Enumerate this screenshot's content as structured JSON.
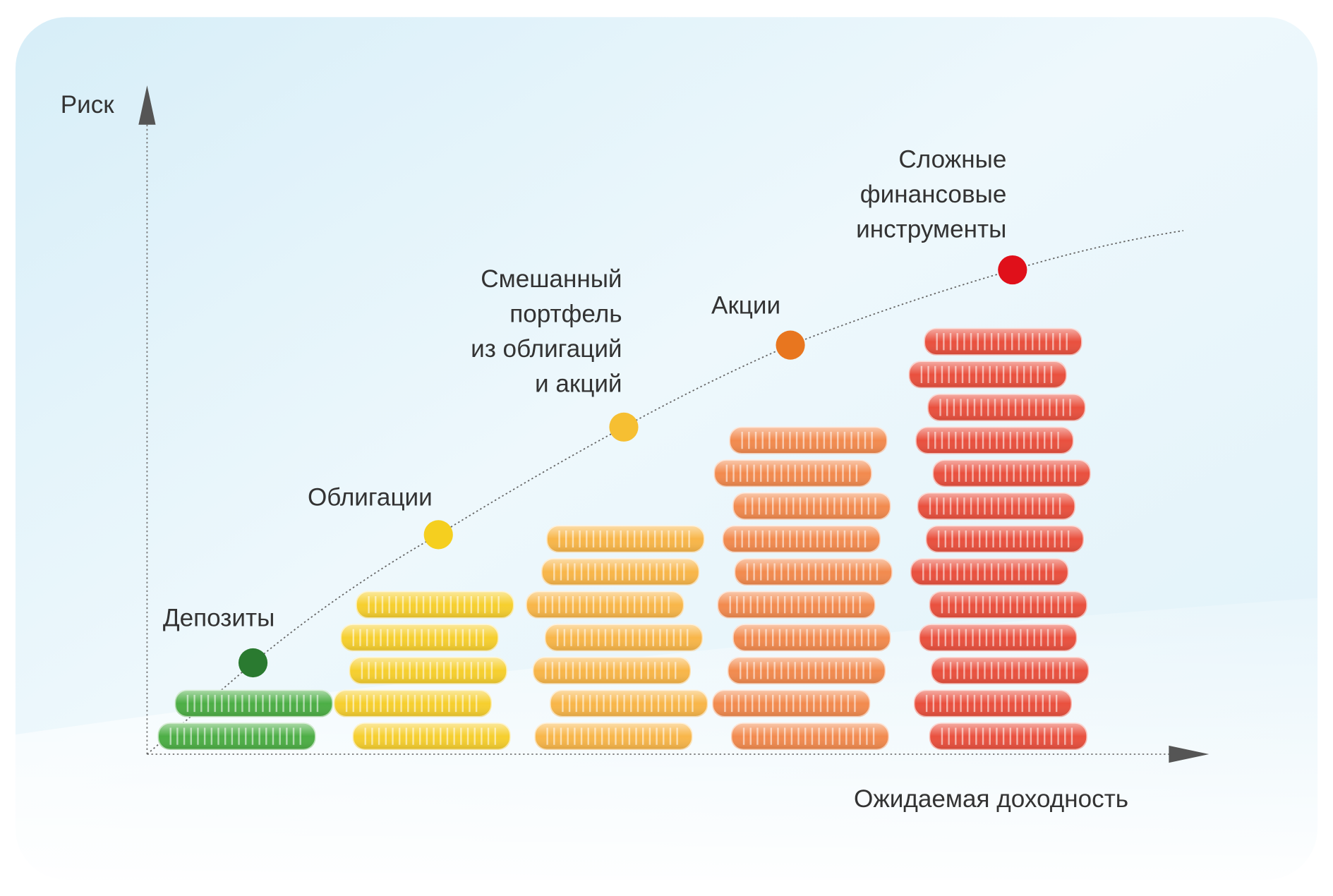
{
  "axes": {
    "y_label": "Риск",
    "x_label": "Ожидаемая доходность"
  },
  "items": [
    {
      "label_lines": [
        "Депозиты"
      ],
      "color": "#4cae45",
      "dot_color": "#2a7a30",
      "coins": 2
    },
    {
      "label_lines": [
        "Облигации"
      ],
      "color": "#f6cf2e",
      "dot_color": "#f5cf1f",
      "coins": 5
    },
    {
      "label_lines": [
        "Смешанный",
        "портфель",
        "из облигаций",
        "и акций"
      ],
      "color": "#f8b649",
      "dot_color": "#f6bf32",
      "coins": 7
    },
    {
      "label_lines": [
        "Акции"
      ],
      "color": "#f28a4e",
      "dot_color": "#e8761f",
      "coins": 10
    },
    {
      "label_lines": [
        "Сложные",
        "финансовые",
        "инструменты"
      ],
      "color": "#e9503e",
      "dot_color": "#e0101a",
      "coins": 13
    }
  ]
}
